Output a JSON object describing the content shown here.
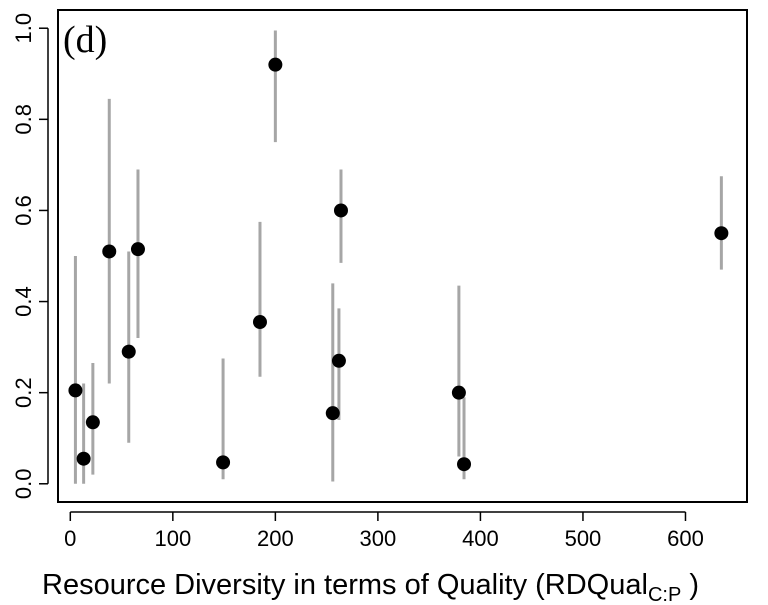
{
  "chart_data": {
    "type": "scatter",
    "panel_label": "(d)",
    "title": "",
    "xlabel": "Resource Diversity in terms of Quality (RDQual",
    "xlabel_subscript": "C:P",
    "xlabel_close": " )",
    "ylabel": "",
    "xlim": [
      -12,
      660
    ],
    "ylim": [
      -0.04,
      1.04
    ],
    "x_ticks": [
      0,
      100,
      200,
      300,
      400,
      500,
      600
    ],
    "x_tick_labels": [
      "0",
      "100",
      "200",
      "300",
      "400",
      "500",
      "600"
    ],
    "y_ticks": [
      0.0,
      0.2,
      0.4,
      0.6,
      0.8,
      1.0
    ],
    "y_tick_labels": [
      "0.0",
      "0.2",
      "0.4",
      "0.6",
      "0.8",
      "1.0"
    ],
    "grid": false,
    "marker_color": "#000000",
    "errorbar_color": "#a6a6a6",
    "points": [
      {
        "x": 5,
        "y": 0.205,
        "lo": 0.0,
        "hi": 0.5
      },
      {
        "x": 13,
        "y": 0.055,
        "lo": 0.0,
        "hi": 0.22
      },
      {
        "x": 22,
        "y": 0.135,
        "lo": 0.02,
        "hi": 0.265
      },
      {
        "x": 38,
        "y": 0.51,
        "lo": 0.22,
        "hi": 0.845
      },
      {
        "x": 57,
        "y": 0.29,
        "lo": 0.09,
        "hi": 0.51
      },
      {
        "x": 66,
        "y": 0.515,
        "lo": 0.32,
        "hi": 0.69
      },
      {
        "x": 149,
        "y": 0.047,
        "lo": 0.01,
        "hi": 0.275
      },
      {
        "x": 185,
        "y": 0.355,
        "lo": 0.235,
        "hi": 0.575
      },
      {
        "x": 200,
        "y": 0.92,
        "lo": 0.75,
        "hi": 0.995
      },
      {
        "x": 256,
        "y": 0.155,
        "lo": 0.005,
        "hi": 0.44
      },
      {
        "x": 262,
        "y": 0.27,
        "lo": 0.14,
        "hi": 0.385
      },
      {
        "x": 264,
        "y": 0.6,
        "lo": 0.485,
        "hi": 0.69
      },
      {
        "x": 379,
        "y": 0.2,
        "lo": 0.06,
        "hi": 0.435
      },
      {
        "x": 384,
        "y": 0.043,
        "lo": 0.01,
        "hi": 0.19
      },
      {
        "x": 635,
        "y": 0.55,
        "lo": 0.47,
        "hi": 0.675
      }
    ]
  }
}
